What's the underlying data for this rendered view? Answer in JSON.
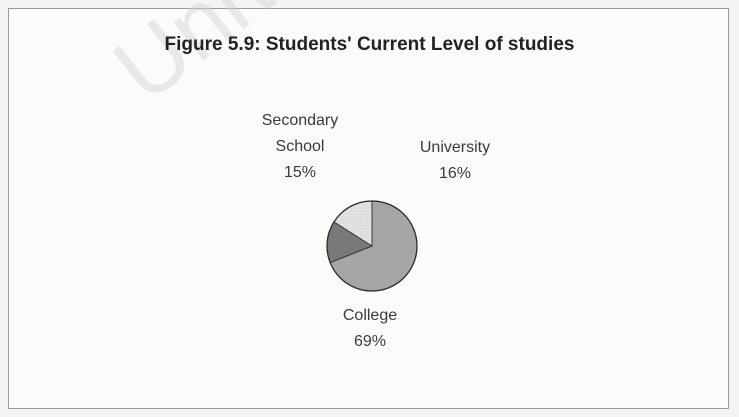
{
  "watermark_text": "Unive",
  "chart_data": {
    "type": "pie",
    "title": "Figure 5.9: Students' Current Level of studies",
    "slices": [
      {
        "name": "College",
        "value": 69,
        "percent_label": "69%",
        "color": "#a8a8a8"
      },
      {
        "name": "Secondary School",
        "value": 15,
        "percent_label": "15%",
        "color": "#7a7a7a"
      },
      {
        "name": "University",
        "value": 16,
        "percent_label": "16%",
        "color": "#e4e4e4"
      }
    ],
    "labels": {
      "secondary_line1": "Secondary",
      "secondary_line2": "School",
      "secondary_pct": "15%",
      "university_line1": "University",
      "university_pct": "16%",
      "college_line1": "College",
      "college_pct": "69%"
    }
  }
}
